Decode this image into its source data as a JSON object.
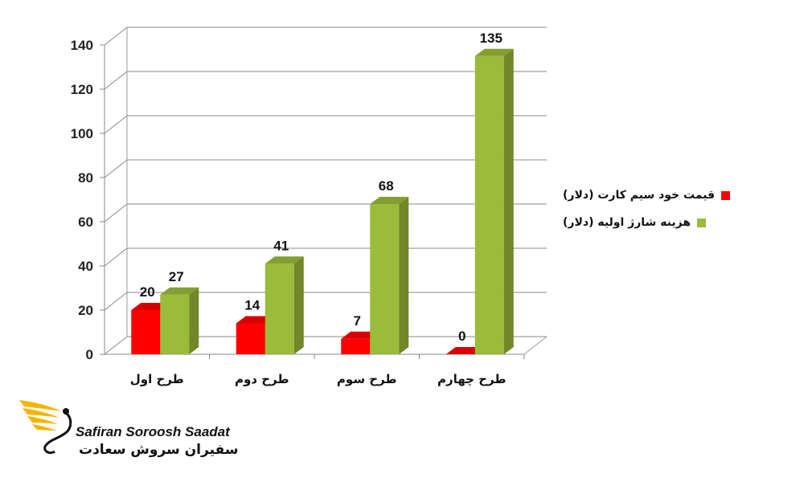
{
  "chart_data": {
    "type": "bar",
    "categories": [
      "طرح اول",
      "طرح دوم",
      "طرح سوم",
      "طرح چهارم"
    ],
    "series": [
      {
        "name": "قیمت خود سیم کارت (دلار)",
        "values": [
          20,
          14,
          7,
          0
        ],
        "color": "#ff0000"
      },
      {
        "name": "هزینه شارژ اولیه (دلار)",
        "values": [
          27,
          41,
          68,
          135
        ],
        "color": "#9bbb3a"
      }
    ],
    "ylim": [
      0,
      140
    ],
    "yticks": [
      0,
      20,
      40,
      60,
      80,
      100,
      120,
      140
    ],
    "grid": true,
    "legend": "right",
    "three_d": true
  },
  "logo": {
    "text_en": "Safiran Soroosh Saadat",
    "text_fa": "سفیران سروش سعادت",
    "color": "#f4b400"
  }
}
